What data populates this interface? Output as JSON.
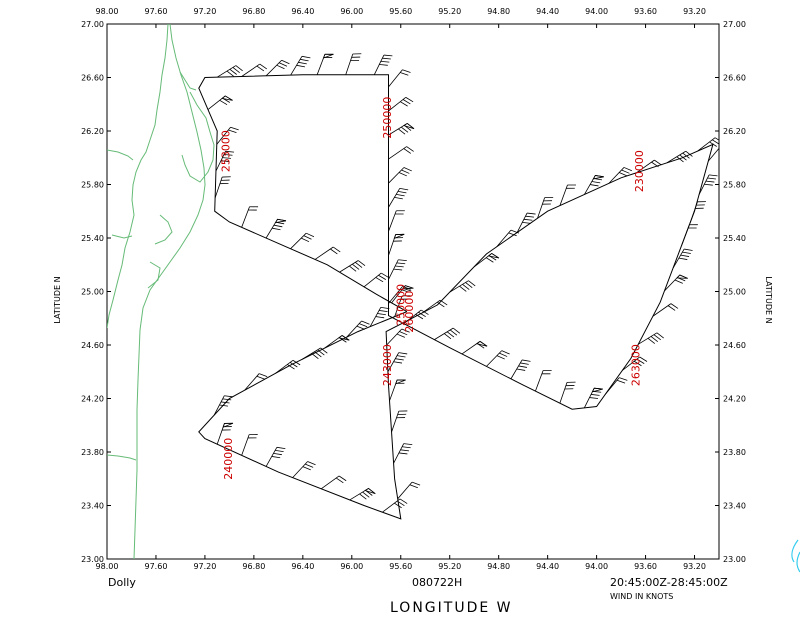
{
  "map": {
    "storm_name": "Dolly",
    "date_code": "080722H",
    "time_range": "20:45:00Z-28:45:00Z",
    "wind_units": "WIND IN KNOTS",
    "x_axis_label": "LONGITUDE  W",
    "y_axis_label": "LATITUDE  N",
    "lon_range": [
      98.0,
      93.0
    ],
    "lat_range": [
      23.0,
      27.0
    ],
    "lon_ticks": [
      "98.00",
      "97.60",
      "97.20",
      "96.80",
      "96.40",
      "96.00",
      "95.60",
      "95.20",
      "94.80",
      "94.40",
      "94.00",
      "93.60",
      "93.20"
    ],
    "lat_ticks": [
      "23.00",
      "23.40",
      "23.80",
      "24.20",
      "24.60",
      "25.00",
      "25.40",
      "25.80",
      "26.20",
      "26.60",
      "27.00"
    ],
    "colors": {
      "track": "#000000",
      "coast": "#66bb77",
      "time_label": "#cc0000",
      "frame": "#000000"
    },
    "track": [
      [
        95.55,
        24.85
      ],
      [
        95.8,
        24.98
      ],
      [
        96.2,
        25.2
      ],
      [
        96.6,
        25.36
      ],
      [
        97.0,
        25.52
      ],
      [
        97.12,
        25.6
      ],
      [
        97.1,
        26.2
      ],
      [
        97.25,
        26.52
      ],
      [
        97.2,
        26.6
      ],
      [
        96.4,
        26.62
      ],
      [
        95.7,
        26.62
      ],
      [
        95.7,
        24.82
      ],
      [
        95.2,
        24.58
      ],
      [
        94.6,
        24.3
      ],
      [
        94.2,
        24.12
      ],
      [
        94.0,
        24.14
      ],
      [
        93.72,
        24.5
      ],
      [
        93.48,
        24.92
      ],
      [
        93.2,
        25.6
      ],
      [
        93.05,
        26.1
      ],
      [
        93.3,
        26.0
      ],
      [
        93.8,
        25.85
      ],
      [
        94.4,
        25.6
      ],
      [
        94.9,
        25.28
      ],
      [
        95.3,
        24.9
      ],
      [
        95.55,
        24.78
      ],
      [
        95.72,
        24.7
      ],
      [
        95.7,
        24.3
      ],
      [
        95.65,
        23.6
      ],
      [
        95.6,
        23.3
      ],
      [
        95.9,
        23.4
      ],
      [
        96.6,
        23.65
      ],
      [
        97.2,
        23.9
      ],
      [
        97.25,
        23.95
      ],
      [
        97.0,
        24.2
      ],
      [
        96.5,
        24.45
      ],
      [
        95.95,
        24.7
      ],
      [
        95.55,
        24.85
      ]
    ],
    "time_labels": [
      {
        "text": "253000",
        "lon": 97.0,
        "lat": 26.05,
        "angle": -90
      },
      {
        "text": "250000",
        "lon": 95.68,
        "lat": 26.3,
        "angle": -90
      },
      {
        "text": "230000",
        "lon": 93.62,
        "lat": 25.9,
        "angle": -90
      },
      {
        "text": "263000",
        "lon": 93.65,
        "lat": 24.45,
        "angle": -90
      },
      {
        "text": "243000",
        "lon": 95.68,
        "lat": 24.45,
        "angle": -90
      },
      {
        "text": "250000",
        "lon": 95.57,
        "lat": 24.9,
        "angle": -90
      },
      {
        "text": "260000",
        "lon": 95.5,
        "lat": 24.85,
        "angle": -90
      },
      {
        "text": "240000",
        "lon": 96.98,
        "lat": 23.75,
        "angle": -90
      }
    ]
  }
}
